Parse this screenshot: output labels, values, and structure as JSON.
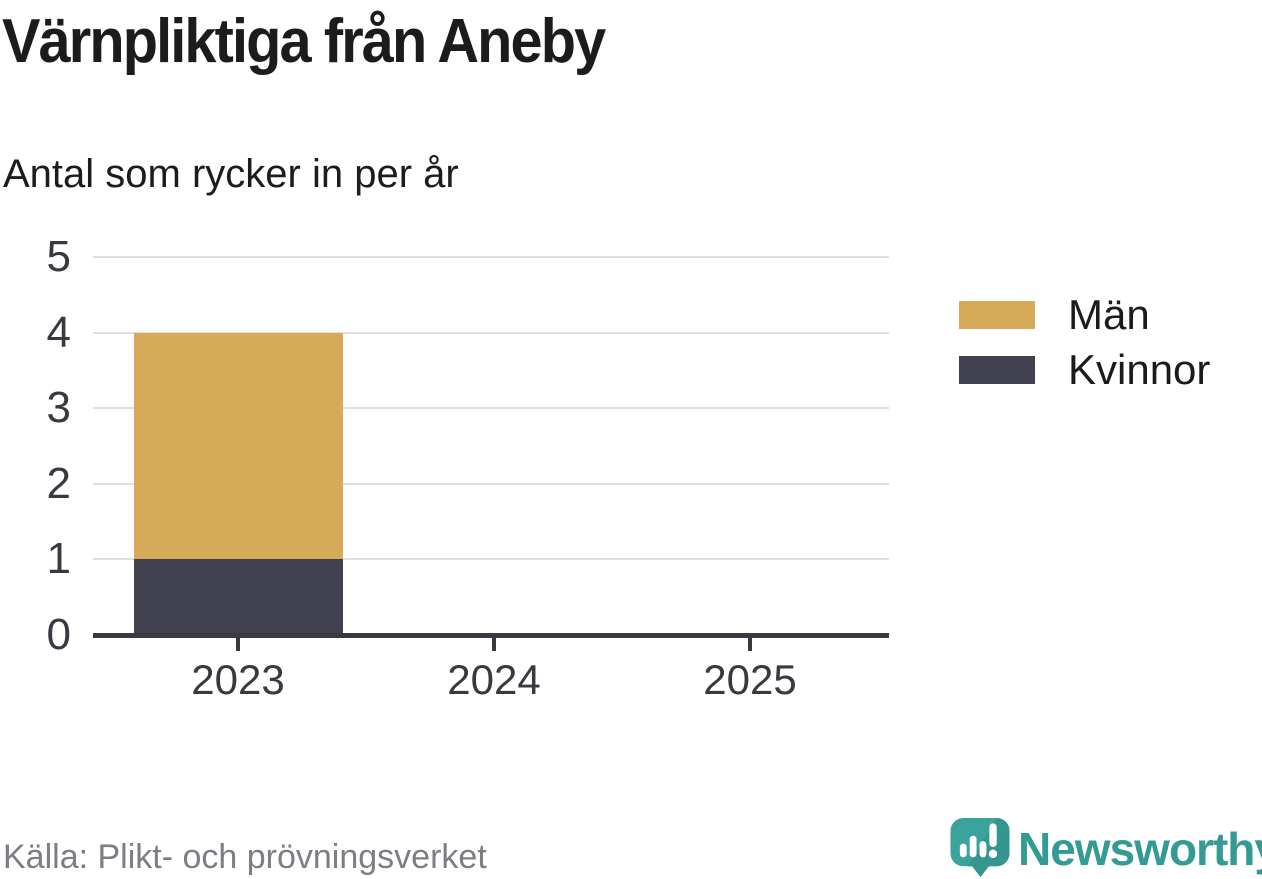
{
  "chart_data": {
    "type": "bar",
    "stacked": true,
    "title": "Värnpliktiga från Aneby",
    "subtitle": "Antal som rycker in per år",
    "source": "Källa: Plikt- och prövningsverket",
    "categories": [
      "2023",
      "2024",
      "2025"
    ],
    "series": [
      {
        "name": "Män",
        "color": "#d7aa5a",
        "values": [
          3,
          null,
          null
        ]
      },
      {
        "name": "Kvinnor",
        "color": "#41404f",
        "values": [
          1,
          null,
          null
        ]
      }
    ],
    "totals": [
      4,
      null,
      null
    ],
    "ylabel": "",
    "xlabel": "",
    "ylim": [
      0,
      5
    ],
    "yticks": [
      0,
      1,
      2,
      3,
      4,
      5
    ],
    "grid": true,
    "legend_position": "right",
    "colors": {
      "grid": "#e0e0e0",
      "axis": "#3a3942",
      "tick_label": "#3a3942",
      "title": "#1d1c1a",
      "source": "#7d7d84"
    }
  },
  "brand": {
    "name": "Newsworthy",
    "color": "#349a94",
    "mark_icon": "chart-speech-bubble-icon",
    "mark_color": "#3ba39b",
    "mark_shade_color": "#35968f"
  }
}
